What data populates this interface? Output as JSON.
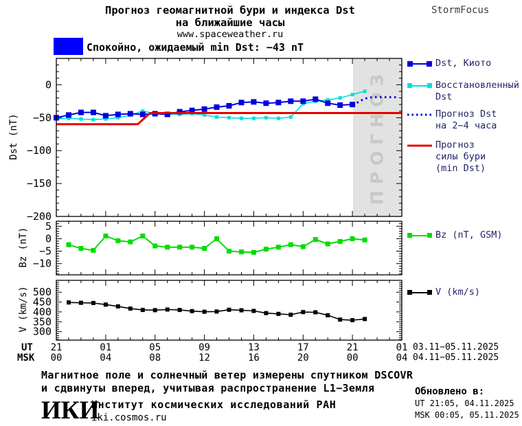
{
  "header": {
    "title_line1": "Прогноз геомагнитной бури и индекса Dst",
    "title_line2": "на ближайшие часы",
    "website": "www.spaceweather.ru",
    "brand": "StormFocus"
  },
  "status": {
    "label": "Спокойно, ожидаемый min Dst: −43 nT",
    "box_color": "#0000ff"
  },
  "legend": {
    "dst_kyoto": "Dst, Киото",
    "dst_restored_l1": "Восстановленный",
    "dst_restored_l2": "Dst",
    "forecast_dst_l1": "Прогноз Dst",
    "forecast_dst_l2": "на 2−4 часа",
    "forecast_storm_l1": "Прогноз",
    "forecast_storm_l2": "силы бури",
    "forecast_storm_l3": "(min Dst)",
    "bz": "Bz (nT, GSM)",
    "v": "V (km/s)"
  },
  "axis": {
    "ut_label": "UT",
    "msk_label": "MSK",
    "date_range_ut": "03.11−05.11.2025",
    "date_range_msk": "04.11−05.11.2025"
  },
  "footer": {
    "note_line1": "Магнитное поле и солнечный ветер измерены спутником DSCOVR",
    "note_line2": "и сдвинуты вперед, учитывая распространение L1−Земля",
    "logo": "ИКИ",
    "institute": "Институт космических исследований РАН",
    "institute_site": "iki.cosmos.ru",
    "updated_label": "Обновлено в:",
    "updated_ut": "UT  21:05, 04.11.2025",
    "updated_msk": "MSK 00:05, 05.11.2025"
  },
  "chart_data": {
    "type": "line",
    "x_axis": {
      "description": "hours since 21:00 UT 03.11.2025",
      "range_hours": [
        0,
        28
      ],
      "tick_hours": [
        0,
        4,
        8,
        12,
        16,
        20,
        24,
        28
      ],
      "ut_labels": [
        "21",
        "01",
        "05",
        "09",
        "13",
        "17",
        "21",
        "01"
      ],
      "msk_labels": [
        "00",
        "04",
        "08",
        "12",
        "16",
        "20",
        "00",
        "04"
      ]
    },
    "forecast_region": {
      "start_hour": 24,
      "end_hour": 28,
      "label": "ПРОГНОЗ",
      "fill": "#e2e2e2"
    },
    "panels": [
      {
        "id": "dst",
        "ylabel": "Dst (nT)",
        "ylim": [
          -200,
          40
        ],
        "yticks": [
          0,
          -50,
          -100,
          -150,
          -200
        ],
        "minor_step": 10,
        "series": [
          {
            "key": "dst_restored",
            "name": "Восстановленный Dst",
            "color": "#00e0e0",
            "line": "solid",
            "width": 1.6,
            "marker": "square",
            "marker_size": 5,
            "x_start": 0,
            "x_step": 1,
            "values": [
              -52,
              -51,
              -52,
              -53,
              -52,
              -50,
              -46,
              -40,
              -44,
              -45,
              -45,
              -44,
              -46,
              -49,
              -50,
              -51,
              -51,
              -50,
              -51,
              -49,
              -29,
              -25,
              -23,
              -20,
              -15,
              -10
            ]
          },
          {
            "key": "dst_kyoto",
            "name": "Dst, Киото",
            "color": "#0000dd",
            "line": "solid",
            "width": 2,
            "marker": "square",
            "marker_size": 8,
            "x_start": 0,
            "x_step": 1,
            "values": [
              -50,
              -46,
              -42,
              -42,
              -47,
              -45,
              -44,
              -45,
              -44,
              -45,
              -41,
              -39,
              -37,
              -34,
              -32,
              -27,
              -26,
              -28,
              -27,
              -25,
              -25,
              -22,
              -28,
              -31,
              -30
            ]
          },
          {
            "key": "storm_forecast",
            "name": "Прогноз силы бури (min Dst)",
            "color": "#e80000",
            "line": "solid",
            "width": 3,
            "marker": "none",
            "x": [
              0,
              6.6,
              7.6,
              28
            ],
            "values": [
              -60,
              -60,
              -43,
              -43
            ]
          },
          {
            "key": "dst_forecast",
            "name": "Прогноз Dst на 2−4 часа",
            "color": "#0000dd",
            "line": "dotted",
            "width": 3,
            "marker": "none",
            "x": [
              24,
              24.4,
              24.8,
              25.2,
              25.6,
              26.1,
              26.6,
              27.1,
              27.6
            ],
            "values": [
              -30,
              -27,
              -23,
              -20,
              -19,
              -19,
              -19,
              -19,
              -19
            ]
          }
        ]
      },
      {
        "id": "bz",
        "ylabel": "Bz (nT)",
        "ylim": [
          -14.5,
          7
        ],
        "yticks": [
          5,
          0,
          -5,
          -10
        ],
        "minor_step": 1,
        "series": [
          {
            "key": "bz",
            "name": "Bz (nT, GSM)",
            "color": "#00dd00",
            "line": "solid",
            "width": 2,
            "marker": "square",
            "marker_size": 7,
            "x_start": 1,
            "x_step": 1,
            "values": [
              -2.4,
              -3.9,
              -4.7,
              1.1,
              -0.8,
              -1.3,
              1.1,
              -2.9,
              -3.4,
              -3.4,
              -3.4,
              -3.9,
              0,
              -5,
              -5.3,
              -5.5,
              -4.2,
              -3.4,
              -2.4,
              -3.2,
              -0.3,
              -2.1,
              -1.1,
              0,
              -0.5
            ]
          }
        ]
      },
      {
        "id": "v",
        "ylabel": "V (km/s)",
        "ylim": [
          257,
          560
        ],
        "yticks": [
          500,
          450,
          400,
          350,
          300
        ],
        "minor_step": 10,
        "series": [
          {
            "key": "v",
            "name": "V (km/s)",
            "color": "#000000",
            "line": "solid",
            "width": 1.6,
            "marker": "square",
            "marker_size": 6,
            "x_start": 1,
            "x_step": 1,
            "values": [
              448,
              446,
              445,
              437,
              428,
              417,
              410,
              409,
              412,
              410,
              404,
              401,
              402,
              411,
              408,
              405,
              394,
              390,
              386,
              399,
              398,
              383,
              361,
              358,
              364
            ]
          }
        ]
      }
    ]
  }
}
